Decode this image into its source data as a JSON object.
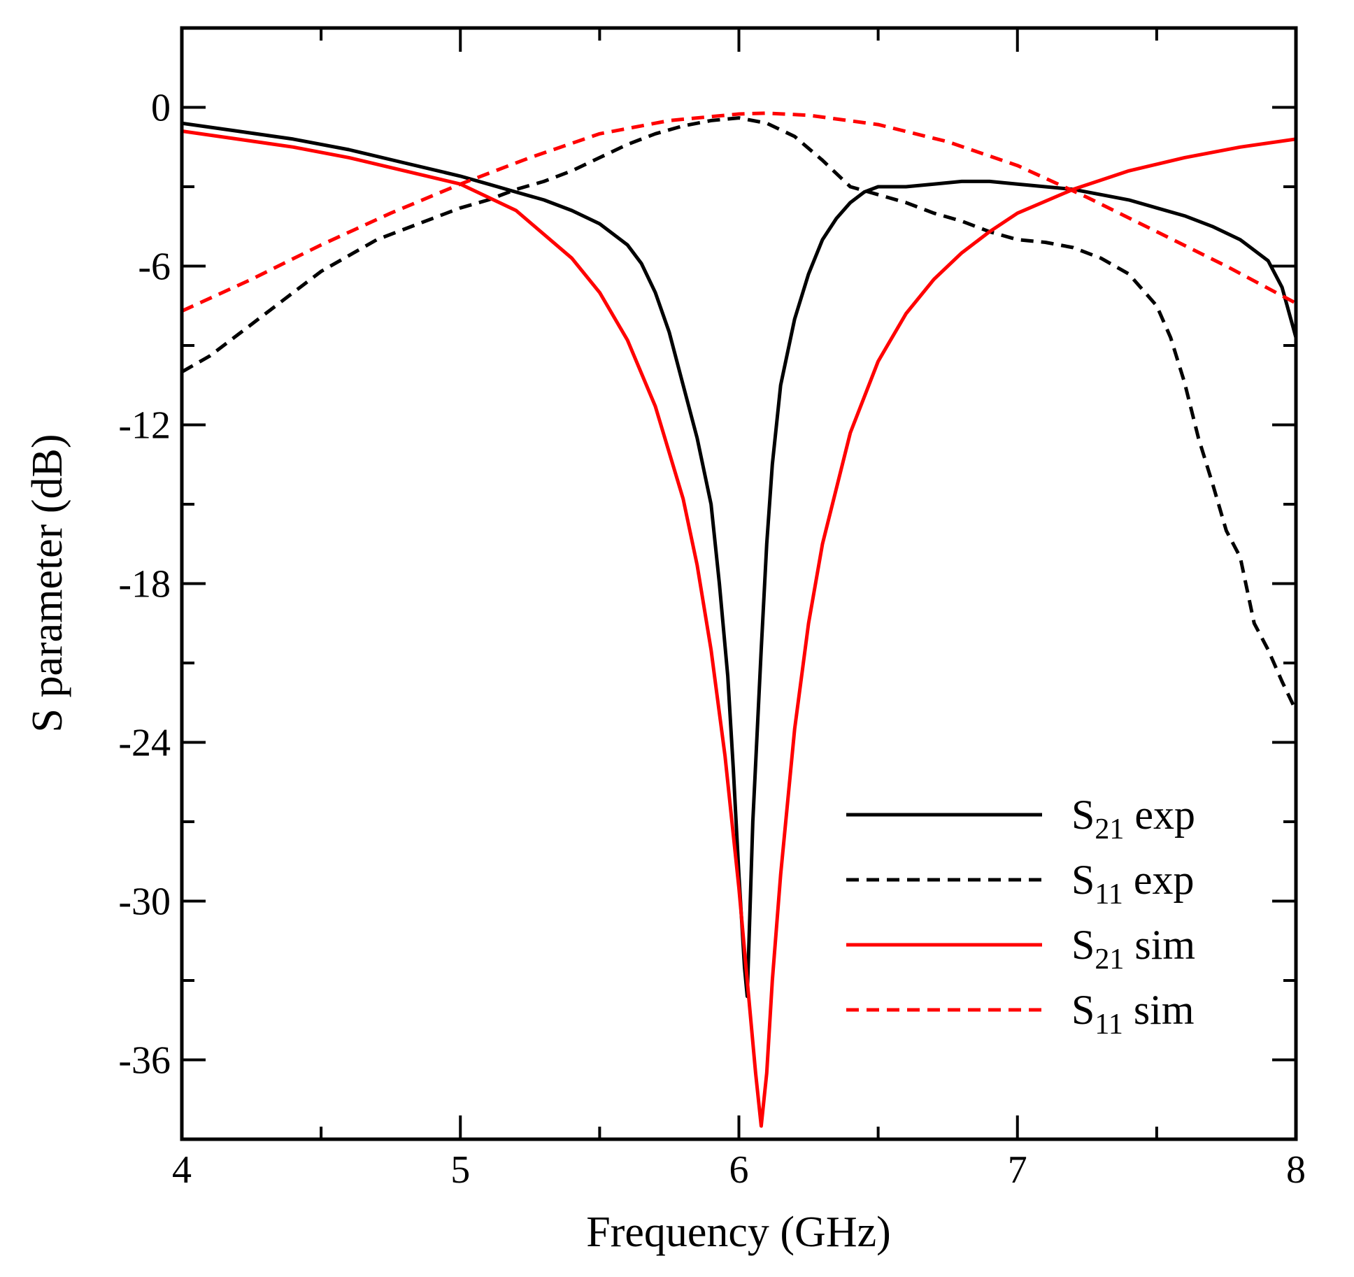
{
  "chart_data": {
    "type": "line",
    "title": "",
    "xlabel": "Frequency (GHz)",
    "ylabel": "S parameter (dB)",
    "xlim": [
      4,
      8
    ],
    "ylim": [
      -39,
      3
    ],
    "xticks": [
      4,
      5,
      6,
      7,
      8
    ],
    "xtick_labels": [
      "4",
      "5",
      "6",
      "7",
      "8"
    ],
    "yticks": [
      0,
      -6,
      -12,
      -18,
      -24,
      -30,
      -36
    ],
    "ytick_labels": [
      "0",
      "-6",
      "-12",
      "-18",
      "-24",
      "-30",
      "-36"
    ],
    "grid": false,
    "legend_position": "bottom-right",
    "series": [
      {
        "name": "S21 exp",
        "legend_main": "S",
        "legend_sub": "21",
        "legend_suffix": " exp",
        "color": "#000000",
        "dash": "solid",
        "x": [
          4.0,
          4.2,
          4.4,
          4.6,
          4.8,
          5.0,
          5.1,
          5.2,
          5.3,
          5.4,
          5.5,
          5.6,
          5.65,
          5.7,
          5.75,
          5.8,
          5.85,
          5.9,
          5.93,
          5.96,
          5.98,
          6.0,
          6.02,
          6.03,
          6.05,
          6.08,
          6.1,
          6.12,
          6.15,
          6.2,
          6.25,
          6.3,
          6.35,
          6.4,
          6.45,
          6.5,
          6.6,
          6.7,
          6.8,
          6.9,
          7.0,
          7.1,
          7.2,
          7.3,
          7.4,
          7.5,
          7.6,
          7.7,
          7.8,
          7.9,
          7.95,
          8.0
        ],
        "y": [
          -0.6,
          -0.9,
          -1.2,
          -1.6,
          -2.1,
          -2.6,
          -2.9,
          -3.2,
          -3.5,
          -3.9,
          -4.4,
          -5.2,
          -5.9,
          -7.0,
          -8.5,
          -10.5,
          -12.5,
          -15.0,
          -18.0,
          -21.5,
          -25.0,
          -29.0,
          -32.5,
          -33.6,
          -27.0,
          -20.5,
          -16.5,
          -13.5,
          -10.5,
          -8.0,
          -6.3,
          -5.0,
          -4.2,
          -3.6,
          -3.2,
          -3.0,
          -3.0,
          -2.9,
          -2.8,
          -2.8,
          -2.9,
          -3.0,
          -3.1,
          -3.3,
          -3.5,
          -3.8,
          -4.1,
          -4.5,
          -5.0,
          -5.8,
          -6.8,
          -8.7
        ]
      },
      {
        "name": "S11 exp",
        "legend_main": "S",
        "legend_sub": "11",
        "legend_suffix": " exp",
        "color": "#000000",
        "dash": "dashed",
        "x": [
          4.0,
          4.1,
          4.2,
          4.3,
          4.4,
          4.5,
          4.6,
          4.7,
          4.8,
          4.9,
          5.0,
          5.1,
          5.2,
          5.3,
          5.4,
          5.5,
          5.6,
          5.7,
          5.8,
          5.9,
          6.0,
          6.1,
          6.2,
          6.3,
          6.4,
          6.5,
          6.6,
          6.7,
          6.8,
          6.9,
          7.0,
          7.1,
          7.2,
          7.3,
          7.4,
          7.5,
          7.55,
          7.6,
          7.65,
          7.7,
          7.75,
          7.8,
          7.85,
          7.9,
          7.95,
          8.0
        ],
        "y": [
          -10.0,
          -9.4,
          -8.6,
          -7.8,
          -7.0,
          -6.2,
          -5.6,
          -5.0,
          -4.6,
          -4.2,
          -3.8,
          -3.5,
          -3.1,
          -2.8,
          -2.4,
          -1.9,
          -1.4,
          -1.0,
          -0.7,
          -0.5,
          -0.4,
          -0.6,
          -1.1,
          -2.0,
          -3.0,
          -3.3,
          -3.6,
          -4.0,
          -4.3,
          -4.7,
          -5.0,
          -5.1,
          -5.3,
          -5.7,
          -6.3,
          -7.5,
          -8.7,
          -10.4,
          -12.5,
          -14.2,
          -16.0,
          -17.0,
          -19.5,
          -20.5,
          -21.7,
          -22.8
        ]
      },
      {
        "name": "S21 sim",
        "legend_main": "S",
        "legend_sub": "21",
        "legend_suffix": " sim",
        "color": "#ff0000",
        "dash": "solid",
        "x": [
          4.0,
          4.2,
          4.4,
          4.6,
          4.8,
          5.0,
          5.2,
          5.4,
          5.5,
          5.6,
          5.7,
          5.8,
          5.85,
          5.9,
          5.95,
          6.0,
          6.03,
          6.06,
          6.08,
          6.1,
          6.12,
          6.15,
          6.2,
          6.25,
          6.3,
          6.4,
          6.5,
          6.6,
          6.7,
          6.8,
          6.9,
          7.0,
          7.2,
          7.4,
          7.6,
          7.8,
          8.0
        ],
        "y": [
          -0.9,
          -1.2,
          -1.5,
          -1.9,
          -2.4,
          -2.9,
          -3.9,
          -5.7,
          -7.0,
          -8.8,
          -11.3,
          -14.8,
          -17.3,
          -20.5,
          -24.5,
          -29.5,
          -33.0,
          -36.5,
          -38.5,
          -36.5,
          -33.0,
          -29.0,
          -23.5,
          -19.5,
          -16.5,
          -12.3,
          -9.6,
          -7.8,
          -6.5,
          -5.5,
          -4.7,
          -4.0,
          -3.1,
          -2.4,
          -1.9,
          -1.5,
          -1.2
        ]
      },
      {
        "name": "S11 sim",
        "legend_main": "S",
        "legend_sub": "11",
        "legend_suffix": " sim",
        "color": "#ff0000",
        "dash": "dashed",
        "x": [
          4.0,
          4.25,
          4.5,
          4.75,
          5.0,
          5.25,
          5.5,
          5.75,
          6.0,
          6.1,
          6.25,
          6.5,
          6.75,
          7.0,
          7.25,
          7.5,
          7.75,
          8.0
        ],
        "y": [
          -7.7,
          -6.5,
          -5.2,
          -4.0,
          -2.9,
          -1.9,
          -1.0,
          -0.5,
          -0.25,
          -0.22,
          -0.3,
          -0.65,
          -1.3,
          -2.2,
          -3.4,
          -4.7,
          -6.0,
          -7.4
        ]
      }
    ]
  }
}
